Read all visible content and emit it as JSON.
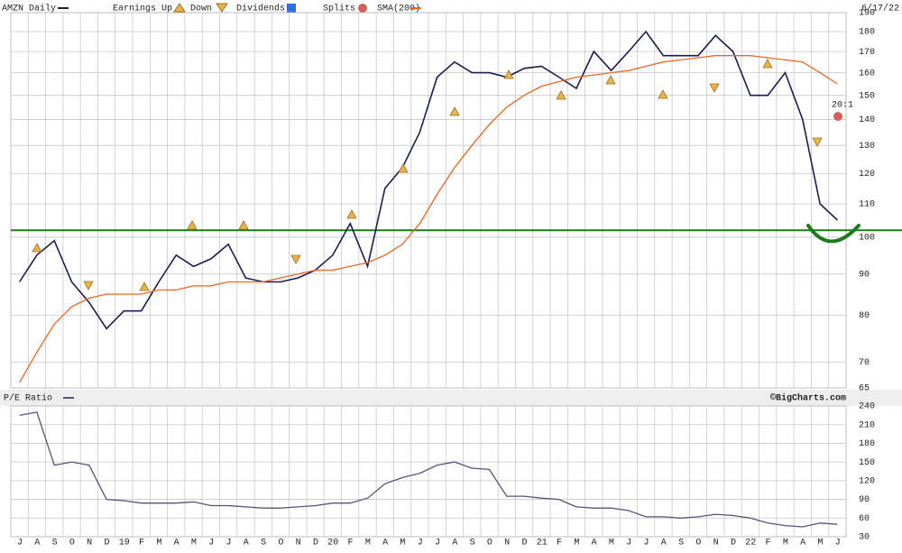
{
  "chart_data": [
    {
      "type": "line",
      "title": "AMZN Daily",
      "date": "6/17/22",
      "log_scale": true,
      "grid": true,
      "event_legend": [
        "Earnings Up",
        "Down",
        "Dividends",
        "Splits"
      ],
      "split_label": "20:1",
      "ylim": [
        65,
        190
      ],
      "yticks": [
        65,
        70,
        80,
        90,
        100,
        110,
        120,
        130,
        140,
        150,
        160,
        170,
        180,
        190
      ],
      "hline": {
        "value": 102,
        "color": "#1f7a1f"
      },
      "series": [
        {
          "name": "AMZN Daily",
          "color": "#1c1c50",
          "values": [
            88,
            95,
            99,
            88,
            83,
            77,
            81,
            81,
            88,
            95,
            92,
            94,
            98,
            89,
            88,
            88,
            89,
            91,
            95,
            104,
            92,
            115,
            122,
            135,
            158,
            165,
            160,
            160,
            158,
            162,
            163,
            158,
            153,
            170,
            161,
            170,
            180,
            168,
            168,
            168,
            178,
            170,
            150,
            150,
            160,
            140,
            110,
            105
          ]
        },
        {
          "name": "SMA(200)",
          "color": "#f26522",
          "values": [
            66,
            72,
            78,
            82,
            84,
            85,
            85,
            85,
            86,
            86,
            87,
            87,
            88,
            88,
            88,
            89,
            90,
            91,
            91,
            92,
            93,
            95,
            98,
            104,
            113,
            122,
            130,
            138,
            145,
            150,
            154,
            156,
            158,
            159,
            160,
            161,
            163,
            165,
            166,
            167,
            168,
            168,
            168,
            167,
            166,
            165,
            160,
            155
          ]
        }
      ]
    },
    {
      "type": "line",
      "title": "P/E Ratio",
      "credit": "©BigCharts.com",
      "grid": true,
      "categories": [
        "J",
        "A",
        "S",
        "O",
        "N",
        "D",
        "19",
        "F",
        "M",
        "A",
        "M",
        "J",
        "J",
        "A",
        "S",
        "O",
        "N",
        "D",
        "20",
        "F",
        "M",
        "A",
        "M",
        "J",
        "J",
        "A",
        "S",
        "O",
        "N",
        "D",
        "21",
        "F",
        "M",
        "A",
        "M",
        "J",
        "J",
        "A",
        "S",
        "O",
        "N",
        "D",
        "22",
        "F",
        "M",
        "A",
        "M",
        "J"
      ],
      "ylim": [
        30,
        240
      ],
      "yticks": [
        30,
        60,
        90,
        120,
        150,
        180,
        210,
        240
      ],
      "series": [
        {
          "name": "P/E Ratio",
          "color": "#55557a",
          "values": [
            225,
            230,
            145,
            150,
            145,
            90,
            88,
            84,
            84,
            84,
            86,
            80,
            80,
            78,
            76,
            76,
            78,
            80,
            84,
            84,
            92,
            115,
            125,
            132,
            145,
            150,
            140,
            138,
            95,
            95,
            92,
            90,
            78,
            76,
            76,
            72,
            62,
            62,
            60,
            62,
            66,
            64,
            60,
            52,
            48,
            46,
            52,
            50
          ]
        }
      ]
    }
  ]
}
